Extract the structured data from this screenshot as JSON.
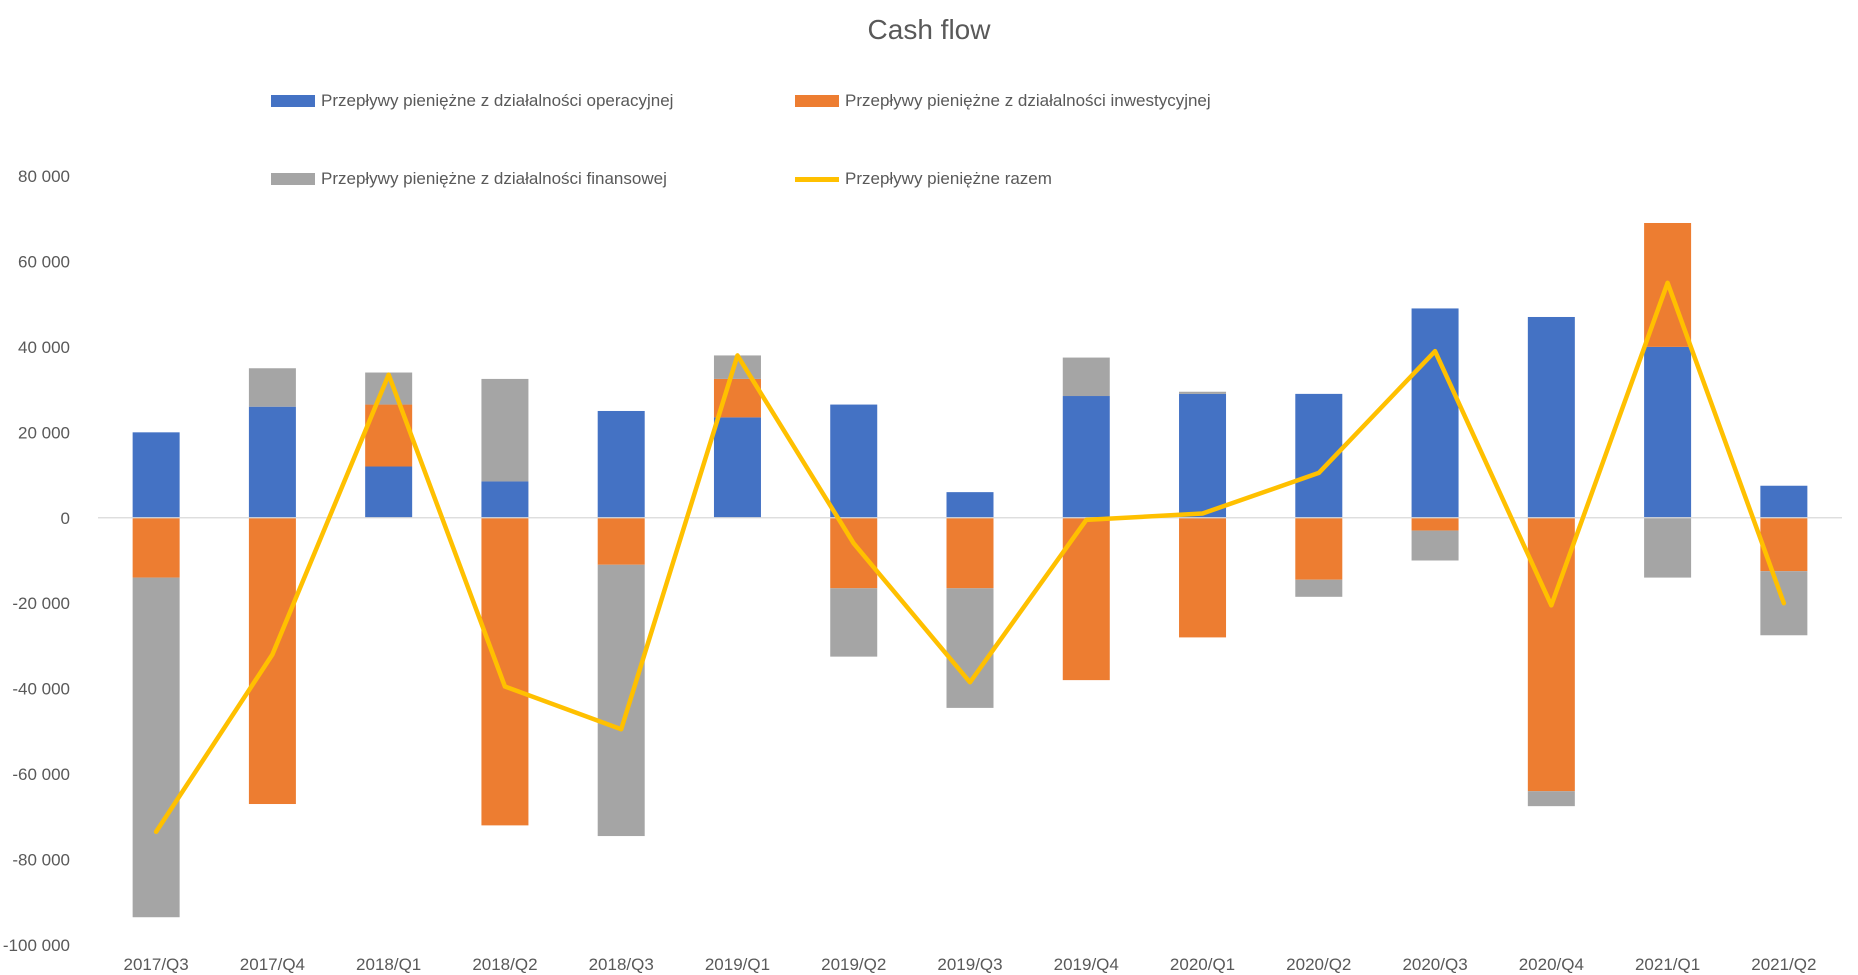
{
  "chart_data": {
    "type": "bar",
    "stacked": true,
    "title": "Cash flow",
    "categories": [
      "2017/Q3",
      "2017/Q4",
      "2018/Q1",
      "2018/Q2",
      "2018/Q3",
      "2019/Q1",
      "2019/Q2",
      "2019/Q3",
      "2019/Q4",
      "2020/Q1",
      "2020/Q2",
      "2020/Q3",
      "2020/Q4",
      "2021/Q1",
      "2021/Q2"
    ],
    "series": [
      {
        "name": "Przepływy pieniężne z działalności operacyjnej",
        "kind": "bar",
        "color": "#4472C4",
        "values": [
          20000,
          26000,
          12000,
          8500,
          25000,
          23500,
          26500,
          6000,
          28500,
          29000,
          29000,
          49000,
          47000,
          40000,
          7500
        ]
      },
      {
        "name": "Przepływy pieniężne z działalności inwestycyjnej",
        "kind": "bar",
        "color": "#ED7D31",
        "values": [
          -14000,
          -67000,
          14500,
          -72000,
          -11000,
          9000,
          -16500,
          -16500,
          -38000,
          -28000,
          -14500,
          -3000,
          -64000,
          29000,
          -12500
        ]
      },
      {
        "name": "Przepływy pieniężne z działalności finansowej",
        "kind": "bar",
        "color": "#A5A5A5",
        "values": [
          -79500,
          9000,
          7500,
          24000,
          -63500,
          5500,
          -16000,
          -28000,
          9000,
          500,
          -4000,
          -7000,
          -3500,
          -14000,
          -15000
        ]
      },
      {
        "name": "Przepływy pieniężne razem",
        "kind": "line",
        "color": "#FFC000",
        "values": [
          -73500,
          -32000,
          33500,
          -39500,
          -49500,
          38000,
          -6000,
          -38500,
          -500,
          1000,
          10500,
          39000,
          -20500,
          55000,
          -20000
        ]
      }
    ],
    "ylim": [
      -100000,
      80000
    ],
    "yticks": [
      80000,
      60000,
      40000,
      20000,
      0,
      -20000,
      -40000,
      -60000,
      -80000,
      -100000
    ],
    "ytick_labels": [
      "80 000",
      "60 000",
      "40 000",
      "20 000",
      "0",
      "-20 000",
      "-40 000",
      "-60 000",
      "-80 000",
      "-100 000"
    ],
    "grid": false,
    "legend_position": "top"
  }
}
